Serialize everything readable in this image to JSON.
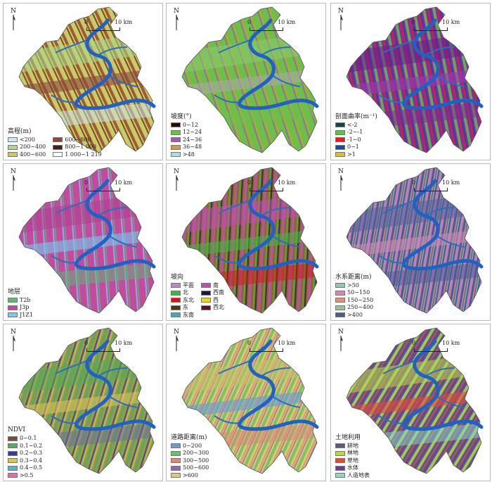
{
  "common": {
    "north": "N",
    "scale_start": "0",
    "scale_end": "10 km"
  },
  "panels": [
    {
      "id": "elevation",
      "title": "高程(m)",
      "cols": 2,
      "items": [
        {
          "label": "<200",
          "color": "#cdeaf0"
        },
        {
          "label": "600~800",
          "color": "#8b4a3c"
        },
        {
          "label": "200~400",
          "color": "#a9d98a"
        },
        {
          "label": "800~1 000",
          "color": "#4a1e12"
        },
        {
          "label": "400~600",
          "color": "#d9c35a"
        },
        {
          "label": "1 000~1 219",
          "color": "#ffffff"
        }
      ],
      "fill": [
        "#d9c35a",
        "#a9d98a",
        "#8b4a3c",
        "#cdeaf0"
      ]
    },
    {
      "id": "slope",
      "title": "坡度(°)",
      "cols": 1,
      "items": [
        {
          "label": "0~12",
          "color": "#2a0a06"
        },
        {
          "label": "12~24",
          "color": "#6cc04a"
        },
        {
          "label": "24~36",
          "color": "#a35bb0"
        },
        {
          "label": "36~48",
          "color": "#d99a2a"
        },
        {
          "label": ">48",
          "color": "#a8dfe6"
        }
      ],
      "fill": [
        "#6cc04a",
        "#8cc870",
        "#a9a9a9",
        "#6cc04a"
      ]
    },
    {
      "id": "curvature",
      "title": "剖面曲率(m⁻¹)",
      "cols": 1,
      "items": [
        {
          "label": "<-2",
          "color": "#0e4a4a"
        },
        {
          "label": "-2~-1",
          "color": "#5cc04a"
        },
        {
          "label": "-1~0",
          "color": "#e0201c"
        },
        {
          "label": "0~1",
          "color": "#1a4aa0"
        },
        {
          "label": ">1",
          "color": "#d9c41a"
        }
      ],
      "fill": [
        "#8a2aa0",
        "#6a1f8a",
        "#9a3ab0",
        "#7c2a90"
      ]
    },
    {
      "id": "stratum",
      "title": "地层",
      "cols": 1,
      "items": [
        {
          "label": "T2b",
          "color": "#5cb874"
        },
        {
          "label": "J3p",
          "color": "#c44aa0"
        },
        {
          "label": "J1Z1",
          "color": "#7ac8ee"
        }
      ],
      "fill": [
        "#c44aa0",
        "#b04090",
        "#7ac8ee",
        "#5cb874"
      ]
    },
    {
      "id": "aspect",
      "title": "坡向",
      "cols": 2,
      "items": [
        {
          "label": "平面",
          "color": "#b48ac8"
        },
        {
          "label": "南",
          "color": "#c050b0"
        },
        {
          "label": "北",
          "color": "#4ab04a"
        },
        {
          "label": "西南",
          "color": "#1a1a40"
        },
        {
          "label": "东北",
          "color": "#d01818"
        },
        {
          "label": "西",
          "color": "#e8d820"
        },
        {
          "label": "东",
          "color": "#4a3a0a"
        },
        {
          "label": "西北",
          "color": "#6a0a20"
        },
        {
          "label": "东南",
          "color": "#30b0c0"
        }
      ],
      "fill": [
        "#8a6a2a",
        "#c050b0",
        "#4ab04a",
        "#d01818"
      ]
    },
    {
      "id": "river",
      "title": "水系距离(m)",
      "cols": 1,
      "items": [
        {
          "label": ">50",
          "color": "#8ec8b8"
        },
        {
          "label": "50~150",
          "color": "#d08ab8"
        },
        {
          "label": "150~250",
          "color": "#e0907a"
        },
        {
          "label": "250~400",
          "color": "#90c890"
        },
        {
          "label": ">400",
          "color": "#4a5a9a"
        }
      ],
      "fill": [
        "#4a5a9a",
        "#55639e",
        "#c88ab0",
        "#4a5a9a"
      ]
    },
    {
      "id": "ndvi",
      "title": "NDVI",
      "cols": 1,
      "items": [
        {
          "label": "0~0.1",
          "color": "#7a4a3a"
        },
        {
          "label": "0.1~0.2",
          "color": "#5aa85a"
        },
        {
          "label": "0.2~0.3",
          "color": "#3a3a90"
        },
        {
          "label": "0.3~0.4",
          "color": "#d8c05a"
        },
        {
          "label": "0.4~0.5",
          "color": "#4ab8d8"
        },
        {
          "label": ">0.5",
          "color": "#e070a8"
        }
      ],
      "fill": [
        "#9a9a4a",
        "#5aa85a",
        "#d8c05a",
        "#6a6aa0"
      ]
    },
    {
      "id": "road",
      "title": "道路距离(m)",
      "cols": 1,
      "items": [
        {
          "label": "0~200",
          "color": "#6a9ad8"
        },
        {
          "label": "200~300",
          "color": "#6ac06a"
        },
        {
          "label": "300~500",
          "color": "#d88a7a"
        },
        {
          "label": "500~600",
          "color": "#a060b0"
        },
        {
          "label": ">600",
          "color": "#d8cc6a"
        }
      ],
      "fill": [
        "#d8cc6a",
        "#c8c06a",
        "#6a9ad8",
        "#d88a7a"
      ]
    },
    {
      "id": "landuse",
      "title": "土地利用",
      "cols": 1,
      "items": [
        {
          "label": "耕地",
          "color": "#5a5a8a"
        },
        {
          "label": "林地",
          "color": "#b8d84a"
        },
        {
          "label": "草地",
          "color": "#e04a3a"
        },
        {
          "label": "水体",
          "color": "#6a3aa0"
        },
        {
          "label": "人造地表",
          "color": "#8ad8c8"
        }
      ],
      "fill": [
        "#5a5a8a",
        "#b8d84a",
        "#e04a3a",
        "#8ad8c8"
      ]
    }
  ]
}
